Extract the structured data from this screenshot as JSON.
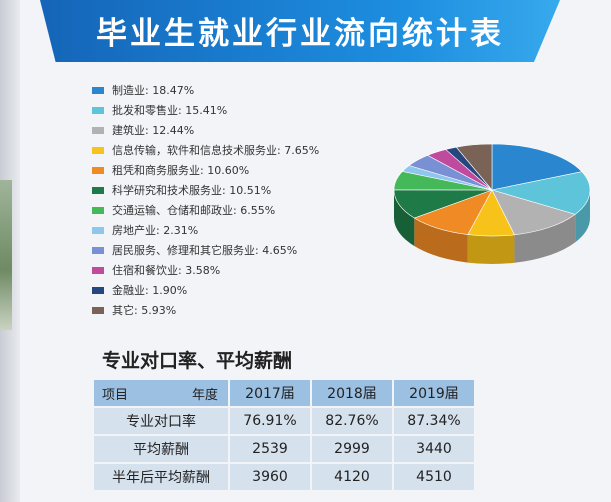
{
  "title": "毕业生就业行业流向统计表",
  "chart_data": {
    "type": "pie",
    "title": "毕业生就业行业流向统计表",
    "slices": [
      {
        "label": "制造业: 18.47%",
        "name": "制造业",
        "value": 18.47,
        "color": "#2a86cf"
      },
      {
        "label": "批发和零售业: 15.41%",
        "name": "批发和零售业",
        "value": 15.41,
        "color": "#5ec4d9"
      },
      {
        "label": "建筑业: 12.44%",
        "name": "建筑业",
        "value": 12.44,
        "color": "#b2b2b2"
      },
      {
        "label": "信息传输，软件和信息技术服务业: 7.65%",
        "name": "信息传输，软件和信息技术服务业",
        "value": 7.65,
        "color": "#f7c21a"
      },
      {
        "label": "租凭和商务服务业: 10.60%",
        "name": "租凭和商务服务业",
        "value": 10.6,
        "color": "#ef8a24"
      },
      {
        "label": "科学研究和技术服务业: 10.51%",
        "name": "科学研究和技术服务业",
        "value": 10.51,
        "color": "#1e7a47"
      },
      {
        "label": "交通运输、仓储和邮政业: 6.55%",
        "name": "交通运输、仓储和邮政业",
        "value": 6.55,
        "color": "#45b85a"
      },
      {
        "label": "房地产业: 2.31%",
        "name": "房地产业",
        "value": 2.31,
        "color": "#8fc6ee"
      },
      {
        "label": "居民服务、修理和其它服务业: 4.65%",
        "name": "居民服务、修理和其它服务业",
        "value": 4.65,
        "color": "#7a90d4"
      },
      {
        "label": "住宿和餐饮业: 3.58%",
        "name": "住宿和餐饮业",
        "value": 3.58,
        "color": "#c04a9e"
      },
      {
        "label": "金融业: 1.90%",
        "name": "金融业",
        "value": 1.9,
        "color": "#25467e"
      },
      {
        "label": "其它: 5.93%",
        "name": "其它",
        "value": 5.93,
        "color": "#7a6257"
      }
    ]
  },
  "table": {
    "title": "专业对口率、平均薪酬",
    "corner_left": "项目",
    "corner_right": "年度",
    "years": [
      "2017届",
      "2018届",
      "2019届"
    ],
    "rows": [
      {
        "label": "专业对口率",
        "values": [
          "76.91%",
          "82.76%",
          "87.34%"
        ]
      },
      {
        "label": "平均薪酬",
        "values": [
          "2539",
          "2999",
          "3440"
        ]
      },
      {
        "label": "半年后平均薪酬",
        "values": [
          "3960",
          "4120",
          "4510"
        ]
      }
    ]
  }
}
